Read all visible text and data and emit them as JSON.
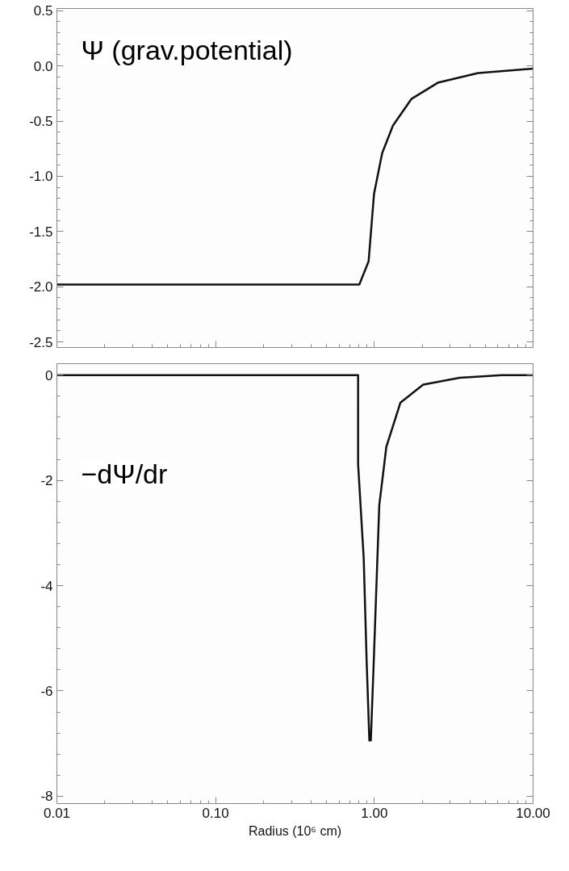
{
  "chart_data": [
    {
      "type": "line",
      "annotations": [
        "Ψ (grav.potential)"
      ],
      "x": [
        0.01,
        0.1,
        0.5,
        0.804,
        0.92,
        0.995,
        1.12,
        1.31,
        1.71,
        2.53,
        4.5,
        10
      ],
      "series": [
        {
          "color": "#111111",
          "values": [
            -1.98,
            -1.98,
            -1.98,
            -1.98,
            -1.77,
            -1.16,
            -0.79,
            -0.54,
            -0.3,
            -0.15,
            -0.065,
            -0.025
          ]
        }
      ],
      "log": "x",
      "xlim": [
        0.01,
        10
      ],
      "xticks": [
        {
          "value": 0.01,
          "label": null
        },
        {
          "value": 0.1,
          "label": null
        },
        {
          "value": 1,
          "label": null
        },
        {
          "value": 10,
          "label": null
        }
      ],
      "ylim": [
        -2.55,
        0.52
      ],
      "yticks": [
        {
          "value": 0.5,
          "label": "0.5"
        },
        {
          "value": 0,
          "label": "0.0"
        },
        {
          "value": -0.5,
          "label": "-0.5"
        },
        {
          "value": -1,
          "label": "-1.0"
        },
        {
          "value": -1.5,
          "label": "-1.5"
        },
        {
          "value": -2,
          "label": "-2.0"
        },
        {
          "value": -2.5,
          "label": "-2.5"
        }
      ],
      "tick_labels": "y",
      "grid": false,
      "marker": "none",
      "line_style": "solid"
    },
    {
      "type": "line",
      "annotations": [
        "−dΨ/dr"
      ],
      "xlabel": "Radius (10⁶ cm)",
      "x": [
        0.01,
        0.1,
        0.5,
        0.79,
        0.79,
        0.857,
        0.893,
        0.93,
        0.95,
        0.99,
        1.074,
        1.19,
        1.46,
        2.03,
        3.44,
        6.35,
        10
      ],
      "series": [
        {
          "color": "#111111",
          "values": [
            0,
            0,
            0,
            0,
            -1.69,
            -3.48,
            -5.38,
            -6.94,
            -6.94,
            -5.49,
            -2.47,
            -1.36,
            -0.52,
            -0.18,
            -0.05,
            0,
            0
          ]
        }
      ],
      "log": "x",
      "xlim": [
        0.01,
        10
      ],
      "xticks": [
        {
          "value": 0.01,
          "label": "0.01"
        },
        {
          "value": 0.1,
          "label": "0.10"
        },
        {
          "value": 1,
          "label": "1.00"
        },
        {
          "value": 10,
          "label": "10.00"
        }
      ],
      "ylim": [
        -8.14,
        0.22
      ],
      "yticks": [
        0,
        -2,
        -4,
        -6,
        -8
      ],
      "grid": false,
      "marker": "none",
      "line_style": "solid"
    }
  ]
}
